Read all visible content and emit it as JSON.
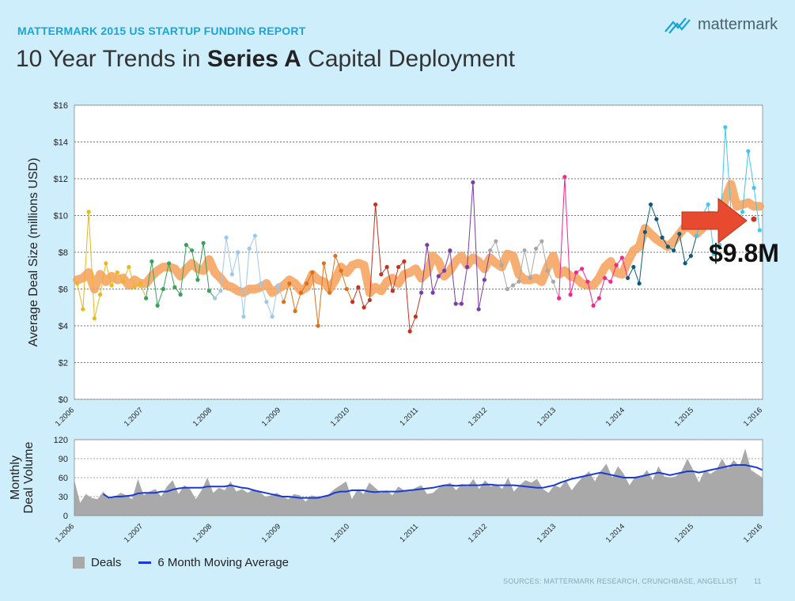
{
  "header": {
    "kicker": "MATTERMARK 2015 US STARTUP FUNDING REPORT",
    "title_pre": "10 Year Trends in ",
    "title_bold": "Series A",
    "title_post": " Capital Deployment",
    "logo_text": "mattermark"
  },
  "callout": {
    "label": "$9.8M",
    "color": "#e84a2f"
  },
  "legend": {
    "deals": "Deals",
    "moving_avg": "6 Month Moving Average"
  },
  "footer": {
    "sources": "SOURCES: MATTERMARK RESEARCH, CRUNCHBASE, ANGELLIST",
    "page": "11"
  },
  "colors": {
    "background": "#cfeefb",
    "accent": "#1aa5d8",
    "trend_band": "#f4a05a",
    "area": "#a9a9a9",
    "moving_avg_line": "#1a3ad6",
    "year_colors": [
      "#e8b81c",
      "#3aa05a",
      "#9ec8ea",
      "#e07018",
      "#c8321c",
      "#7a3ea8",
      "#a8a8a8",
      "#f0288c",
      "#0e5a7a",
      "#3ec8ee"
    ]
  },
  "chart_data": [
    {
      "type": "line",
      "ylabel": "Average Deal Size (millions USD)",
      "ylim": [
        0,
        16
      ],
      "yticks": [
        "$0",
        "$2",
        "$4",
        "$6",
        "$8",
        "$10",
        "$12",
        "$14",
        "$16"
      ],
      "x_ticks": [
        "1.2006",
        "1.2007",
        "1.2008",
        "1.2009",
        "1.2010",
        "1.2011",
        "1.2012",
        "1.2013",
        "1.2014",
        "1.2015",
        "1.2016"
      ],
      "grid": true,
      "series": [
        {
          "values": [
            6.3,
            4.9,
            10.2,
            4.4,
            5.7,
            7.4,
            6.2,
            6.9,
            6.4,
            7.2,
            6.1,
            6.3,
            5.5,
            7.5,
            5.1,
            6.0,
            7.4,
            6.1,
            5.7,
            8.4,
            8.1,
            6.5,
            8.5,
            5.9,
            5.5,
            5.9,
            8.8,
            6.8,
            8.0,
            4.5,
            8.2,
            8.9,
            6.3,
            5.3,
            4.5,
            6.2,
            5.3,
            6.3,
            4.8,
            5.8,
            6.3,
            6.9,
            4.0,
            7.4,
            5.8,
            7.8,
            7.0,
            6.0,
            5.3,
            6.1,
            5.0,
            5.4,
            10.6,
            6.8,
            7.2,
            5.9,
            7.2,
            7.5,
            3.7,
            4.5,
            5.8,
            8.4,
            5.8,
            6.7,
            7.0,
            8.1,
            5.2,
            5.2,
            7.2,
            11.8,
            4.9,
            6.5,
            8.1,
            8.6,
            7.3,
            6.0,
            6.2,
            6.4,
            8.1,
            6.6,
            8.2,
            8.6,
            7.0,
            6.4,
            5.5,
            12.1,
            5.7,
            6.9,
            7.1,
            6.4,
            5.1,
            5.5,
            6.6,
            6.4,
            7.3,
            7.7,
            6.6,
            7.2,
            6.3,
            9.1,
            10.6,
            9.8,
            8.8,
            8.3,
            8.1,
            9.0,
            7.4,
            7.8,
            8.9,
            10.0,
            10.6,
            7.9,
            8.4,
            14.8,
            10.2,
            9.6,
            10.2,
            13.5,
            11.5,
            9.2
          ],
          "final_value": 9.8
        },
        {
          "name": "trend",
          "values": [
            6.5,
            6.6,
            6.9,
            6.0,
            6.8,
            6.4,
            6.7,
            6.5,
            6.6,
            6.2,
            6.5,
            6.3,
            6.3,
            6.7,
            7.0,
            7.2,
            7.2,
            7.1,
            6.7,
            7.1,
            7.4,
            7.1,
            7.0,
            7.6,
            6.9,
            6.6,
            6.2,
            6.1,
            5.9,
            5.8,
            6.0,
            6.0,
            6.1,
            6.3,
            5.8,
            6.0,
            6.2,
            6.5,
            6.3,
            5.9,
            6.1,
            6.8,
            6.5,
            6.4,
            6.0,
            6.5,
            7.2,
            6.9,
            7.3,
            7.4,
            7.3,
            5.8,
            6.1,
            5.9,
            6.4,
            6.6,
            6.3,
            6.8,
            6.9,
            7.1,
            6.6,
            6.9,
            7.8,
            7.5,
            6.7,
            7.0,
            7.5,
            7.8,
            7.3,
            7.7,
            7.5,
            7.1,
            7.7,
            7.4,
            7.2,
            7.9,
            7.8,
            6.8,
            6.5,
            6.5,
            6.6,
            6.4,
            7.2,
            7.8,
            6.8,
            7.0,
            6.7,
            6.6,
            6.3,
            6.2,
            6.2,
            6.6,
            7.2,
            7.5,
            6.9,
            6.8,
            7.5,
            8.1,
            8.3,
            9.3,
            9.0,
            8.7,
            8.5,
            8.3,
            8.6,
            9.0,
            9.4,
            9.3,
            9.0,
            9.3,
            10.0,
            10.0,
            9.8,
            10.9,
            11.7,
            10.5,
            10.6,
            10.7,
            10.5,
            10.5
          ]
        }
      ]
    },
    {
      "type": "area",
      "ylabel": "Monthly\nDeal Volume",
      "ylim": [
        0,
        120
      ],
      "yticks": [
        "0",
        "30",
        "60",
        "90",
        "120"
      ],
      "x_ticks": [
        "1.2006",
        "1.2007",
        "1.2008",
        "1.2009",
        "1.2010",
        "1.2011",
        "1.2012",
        "1.2013",
        "1.2014",
        "1.2015",
        "1.2016"
      ],
      "series": [
        {
          "name": "Deals",
          "values": [
            56,
            20,
            34,
            28,
            26,
            38,
            26,
            30,
            36,
            32,
            26,
            58,
            32,
            38,
            42,
            30,
            46,
            56,
            34,
            48,
            42,
            26,
            40,
            60,
            36,
            44,
            40,
            54,
            38,
            42,
            36,
            42,
            38,
            30,
            32,
            36,
            30,
            26,
            34,
            32,
            22,
            32,
            30,
            28,
            34,
            42,
            48,
            54,
            26,
            42,
            34,
            52,
            44,
            36,
            40,
            32,
            46,
            40,
            38,
            44,
            48,
            34,
            36,
            44,
            48,
            52,
            40,
            50,
            46,
            58,
            42,
            56,
            46,
            50,
            42,
            60,
            38,
            48,
            56,
            52,
            58,
            42,
            36,
            48,
            44,
            56,
            40,
            52,
            62,
            70,
            54,
            70,
            82,
            60,
            78,
            66,
            48,
            62,
            60,
            72,
            56,
            78,
            62,
            60,
            62,
            70,
            90,
            72,
            52,
            72,
            66,
            72,
            90,
            74,
            88,
            78,
            106,
            72,
            66,
            60
          ]
        },
        {
          "name": "6 Month Moving Average",
          "values": [
            null,
            null,
            null,
            null,
            null,
            34,
            28,
            30,
            30,
            31,
            32,
            35,
            36,
            36,
            36,
            38,
            38,
            41,
            43,
            44,
            44,
            44,
            44,
            46,
            46,
            46,
            46,
            48,
            46,
            44,
            43,
            40,
            38,
            36,
            34,
            32,
            30,
            30,
            29,
            28,
            28,
            28,
            28,
            30,
            32,
            36,
            38,
            38,
            40,
            40,
            40,
            38,
            37,
            38,
            38,
            38,
            38,
            39,
            40,
            41,
            42,
            43,
            44,
            46,
            48,
            48,
            47,
            48,
            48,
            48,
            48,
            49,
            49,
            48,
            48,
            48,
            48,
            47,
            46,
            45,
            44,
            44,
            46,
            48,
            52,
            55,
            58,
            60,
            62,
            64,
            66,
            68,
            66,
            64,
            62,
            60,
            60,
            60,
            62,
            64,
            66,
            68,
            66,
            64,
            66,
            68,
            70,
            70,
            68,
            70,
            72,
            74,
            76,
            78,
            80,
            80,
            80,
            78,
            76,
            72
          ]
        }
      ]
    }
  ]
}
